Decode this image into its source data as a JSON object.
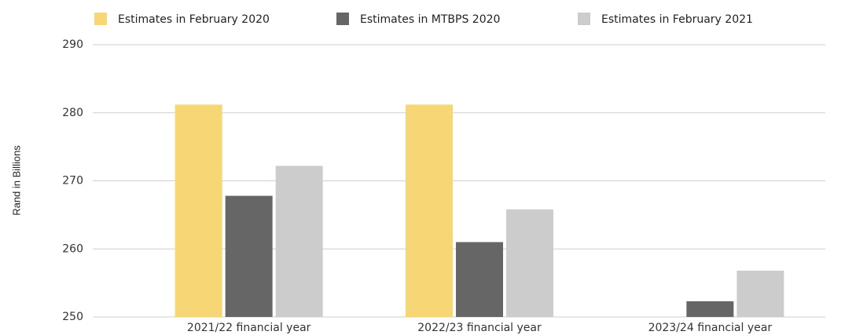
{
  "chart_data": {
    "type": "bar",
    "y_label": "Rand in Billions",
    "categories": [
      "2021/22 financial year",
      "2022/23 financial year",
      "2023/24 financial year"
    ],
    "series": [
      {
        "name": "Estimates in February 2020",
        "color": "#f7d675",
        "values": [
          281.2,
          281.2,
          null
        ]
      },
      {
        "name": "Estimates in MTBPS 2020",
        "color": "#666666",
        "values": [
          267.8,
          261.0,
          252.3
        ]
      },
      {
        "name": "Estimates in February 2021",
        "color": "#cccccc",
        "values": [
          272.2,
          265.8,
          256.8
        ]
      }
    ],
    "ylim": [
      250,
      290
    ],
    "yticks": [
      250,
      260,
      270,
      280,
      290
    ],
    "grid": true
  }
}
